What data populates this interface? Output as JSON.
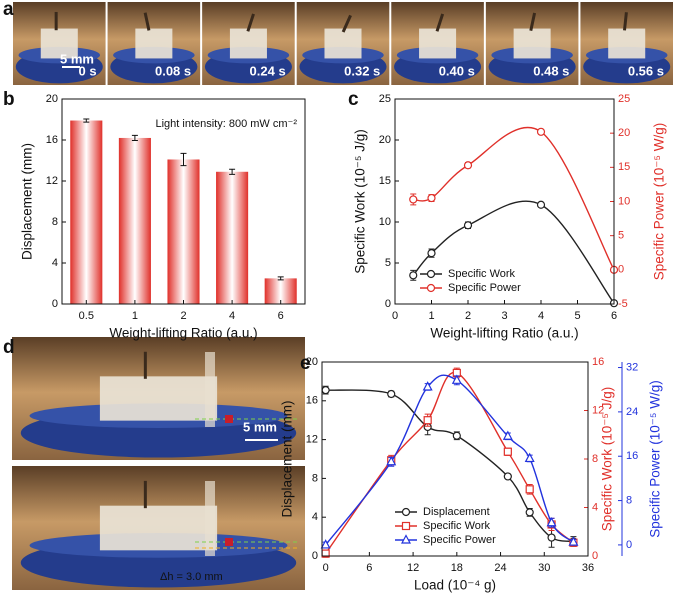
{
  "figure": {
    "panel_labels": [
      "a",
      "b",
      "c",
      "d",
      "e"
    ]
  },
  "photos_a": {
    "times": [
      "0 s",
      "0.08 s",
      "0.24 s",
      "0.32 s",
      "0.40 s",
      "0.48 s",
      "0.56 s"
    ],
    "scale": "5 mm"
  },
  "photos_d": {
    "scale": "5 mm",
    "delta": "Δh = 3.0 mm"
  },
  "chart_data": [
    {
      "type": "bar",
      "categories": [
        "0.5",
        "1",
        "2",
        "4",
        "6"
      ],
      "values": [
        17.9,
        16.2,
        14.1,
        12.9,
        2.5
      ],
      "errors": [
        0.15,
        0.25,
        0.6,
        0.25,
        0.15
      ],
      "color": "#e0302a",
      "ylim": [
        0,
        20
      ],
      "yticks": [
        0,
        4,
        8,
        12,
        16,
        20
      ],
      "ylabel": "Displacement (mm)",
      "xlabel": "Weight-lifting Ratio (a.u.)",
      "annotation": "Light intensity: 800 mW cm⁻²"
    },
    {
      "type": "line",
      "xlim": [
        0,
        6
      ],
      "xticks": [
        0,
        1,
        2,
        3,
        4,
        5,
        6
      ],
      "ylim": [
        0,
        25
      ],
      "yticks": [
        0,
        5,
        10,
        15,
        20,
        25
      ],
      "y2lim": [
        -5,
        25
      ],
      "y2ticks": [
        -5,
        0,
        5,
        10,
        15,
        20,
        25
      ],
      "y2color": "#e0302a",
      "xlabel": "Weight-lifting Ratio (a.u.)",
      "ylabel": "Specific Work (10⁻⁵ J/g)",
      "y2label": "Specific Power (10⁻⁵ W/g)",
      "legend": "lower left",
      "series": [
        {
          "name": "Specific Work",
          "color": "#222222",
          "marker": "circle",
          "x": [
            0.5,
            1,
            2,
            4,
            6
          ],
          "values": [
            3.5,
            6.2,
            9.6,
            12.1,
            0.1
          ],
          "errors": [
            0.6,
            0.5,
            0.4,
            0.2,
            0.1
          ]
        },
        {
          "name": "Specific Power",
          "color": "#e0302a",
          "marker": "circle",
          "axis": "y2",
          "x": [
            0.5,
            1,
            2,
            4,
            6
          ],
          "values": [
            10.3,
            10.5,
            15.3,
            20.2,
            0
          ],
          "errors": [
            0.8,
            0.5,
            0.4,
            0.3,
            0.2
          ]
        }
      ]
    },
    {
      "type": "line",
      "xlim": [
        -0.5,
        36
      ],
      "xticks": [
        0,
        6,
        12,
        18,
        24,
        30,
        36
      ],
      "ylim": [
        0,
        20
      ],
      "yticks": [
        0,
        4,
        8,
        12,
        16,
        20
      ],
      "y2lim": [
        0,
        16
      ],
      "y2ticks": [
        0,
        4,
        8,
        12,
        16
      ],
      "y2color": "#e0302a",
      "y3lim": [
        -2,
        33
      ],
      "y3ticks": [
        0,
        8,
        16,
        24,
        32
      ],
      "y3color": "#2233dd",
      "xlabel": "Load (10⁻⁴ g)",
      "ylabel": "Displacement (mm)",
      "y2label": "Specific Work (10⁻⁵ J/g)",
      "y3label": "Specific Power (10⁻⁵ W/g)",
      "legend": "lower center",
      "series": [
        {
          "name": "Displacement",
          "color": "#222222",
          "marker": "circle",
          "x": [
            0,
            9,
            14,
            18,
            25,
            28,
            31,
            34
          ],
          "values": [
            17.1,
            16.7,
            13.3,
            12.4,
            8.2,
            4.5,
            1.9,
            1.5
          ],
          "errors": [
            0.4,
            0.3,
            0.8,
            0.4,
            0.2,
            0.4,
            1.0,
            0.5
          ]
        },
        {
          "name": "Specific Work",
          "color": "#e0302a",
          "marker": "square",
          "axis": "y2",
          "x": [
            0,
            9,
            14,
            18,
            25,
            28,
            31,
            34
          ],
          "values": [
            0.2,
            7.9,
            11.2,
            15.1,
            8.6,
            5.5,
            2.6,
            1.1
          ],
          "errors": [
            0.3,
            0.4,
            0.5,
            0.4,
            0.3,
            0.4,
            0.5,
            0.3
          ]
        },
        {
          "name": "Specific Power",
          "color": "#2233dd",
          "marker": "triangle",
          "axis": "y3",
          "x": [
            0,
            9,
            14,
            18,
            25,
            28,
            31,
            34
          ],
          "values": [
            0,
            15,
            28.5,
            29.7,
            19.6,
            15.6,
            4,
            0.5
          ],
          "errors": [
            0.5,
            0.8,
            0.6,
            0.8,
            0.6,
            0.6,
            0.8,
            0.5
          ]
        }
      ]
    }
  ]
}
